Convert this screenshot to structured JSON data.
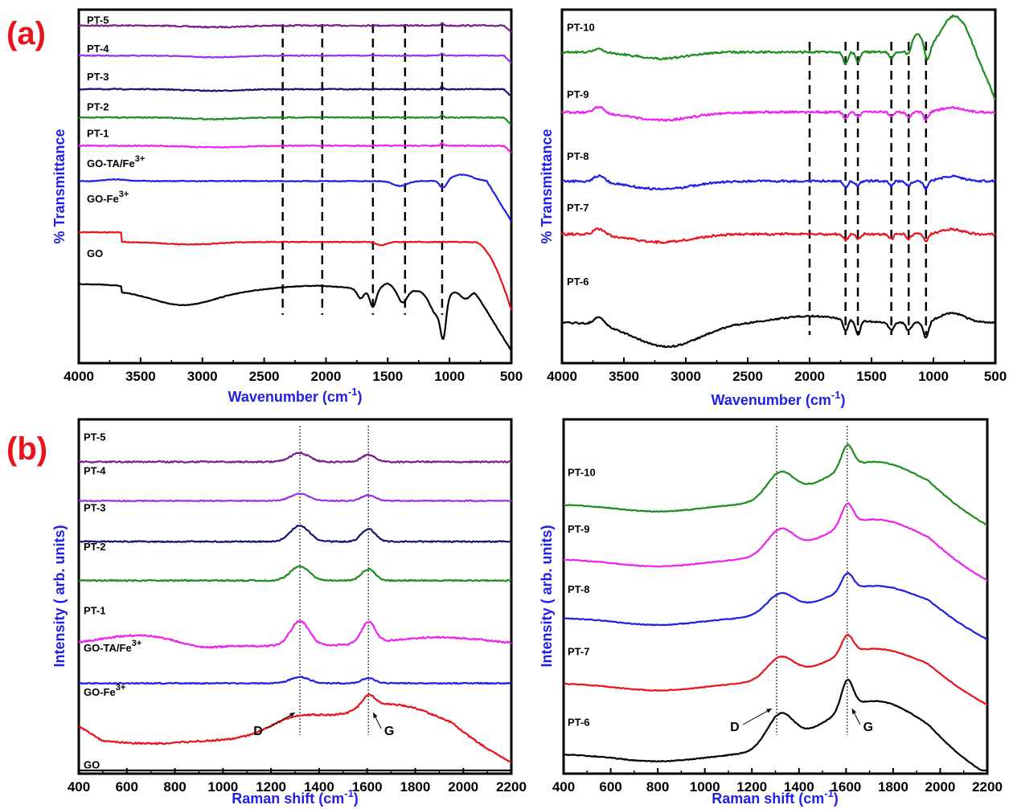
{
  "panel_labels": [
    "(a)",
    "(b)"
  ],
  "colors": {
    "black": "#000000",
    "red": "#e8141c",
    "blue": "#1f1fe6",
    "magenta": "#ee22ee",
    "green": "#1e8c1e",
    "navy": "#151570",
    "violet": "#9a30e8",
    "purple": "#7a1e8c"
  },
  "chart_data": [
    {
      "type": "line",
      "title": "",
      "xlabel": "Wavenumber (cm",
      "xlabel_sup": "-1",
      "xlabel_tail": ")",
      "ylabel": "% Transmittance",
      "xlim": [
        4000,
        500
      ],
      "xticks": [
        "4000",
        "3500",
        "3000",
        "2500",
        "2000",
        "1500",
        "1000",
        "500"
      ],
      "xtick_values": [
        4000,
        3500,
        3000,
        2500,
        2000,
        1500,
        1000,
        500
      ],
      "reference_lines": [
        2350,
        2030,
        1620,
        1360,
        1060
      ],
      "series": [
        {
          "name": "PT-5",
          "sup": "",
          "color": "#7a1e8c",
          "y": 0.045,
          "ly": 0.04,
          "type": "flat",
          "noise": 0.8
        },
        {
          "name": "PT-4",
          "sup": "",
          "color": "#9a30e8",
          "y": 0.13,
          "ly": 0.12,
          "type": "flat",
          "noise": 0.5
        },
        {
          "name": "PT-3",
          "sup": "",
          "color": "#151570",
          "y": 0.225,
          "ly": 0.2,
          "type": "flat",
          "noise": 0.6
        },
        {
          "name": "PT-2",
          "sup": "",
          "color": "#1e8c1e",
          "y": 0.305,
          "ly": 0.285,
          "type": "flat",
          "noise": 0.6
        },
        {
          "name": "PT-1",
          "sup": "",
          "color": "#ee22ee",
          "y": 0.385,
          "ly": 0.36,
          "type": "flat",
          "noise": 0.6
        },
        {
          "name": "GO-TA/Fe",
          "sup": "3+",
          "color": "#1f1fe6",
          "y": 0.485,
          "ly": 0.445,
          "type": "drop",
          "noise": 0.5
        },
        {
          "name": "GO-Fe",
          "sup": "3+",
          "color": "#e8141c",
          "y": 0.63,
          "ly": 0.545,
          "type": "redgo",
          "noise": 0.5
        },
        {
          "name": "GO",
          "sup": "",
          "color": "#000000",
          "y": 0.795,
          "ly": 0.7,
          "type": "go",
          "noise": 0.4
        }
      ]
    },
    {
      "type": "line",
      "title": "",
      "xlabel": "Wavenumber (cm",
      "xlabel_sup": "-1",
      "xlabel_tail": ")",
      "ylabel": "% Transmittance",
      "xlim": [
        4000,
        500
      ],
      "xticks": [
        "4000",
        "3500",
        "3000",
        "2500",
        "2000",
        "1500",
        "1000",
        "500"
      ],
      "xtick_values": [
        4000,
        3500,
        3000,
        2500,
        2000,
        1500,
        1000,
        500
      ],
      "reference_lines": [
        2000,
        1710,
        1610,
        1340,
        1200,
        1060
      ],
      "series": [
        {
          "name": "PT-10",
          "sup": "",
          "color": "#1e8c1e",
          "y": 0.12,
          "ly": 0.06,
          "type": "pt10",
          "noise": 1.2
        },
        {
          "name": "PT-9",
          "sup": "",
          "color": "#ee22ee",
          "y": 0.29,
          "ly": 0.25,
          "type": "noisy",
          "noise": 1.3
        },
        {
          "name": "PT-8",
          "sup": "",
          "color": "#1f1fe6",
          "y": 0.485,
          "ly": 0.425,
          "type": "noisy",
          "noise": 1.3
        },
        {
          "name": "PT-7",
          "sup": "",
          "color": "#e8141c",
          "y": 0.635,
          "ly": 0.57,
          "type": "noisy",
          "noise": 1.4
        },
        {
          "name": "PT-6",
          "sup": "",
          "color": "#000000",
          "y": 0.885,
          "ly": 0.78,
          "type": "pt6",
          "noise": 1.0
        }
      ]
    },
    {
      "type": "line",
      "title": "",
      "xlabel": "Raman shift (cm",
      "xlabel_sup": "-1",
      "xlabel_tail": ")",
      "ylabel": "Intensity ( arb. units)",
      "xlim": [
        400,
        2200
      ],
      "xticks": [
        "400",
        "600",
        "800",
        "1000",
        "1200",
        "1400",
        "1600",
        "1800",
        "2000",
        "2200"
      ],
      "xtick_values": [
        400,
        600,
        800,
        1000,
        1200,
        1400,
        1600,
        1800,
        2000,
        2200
      ],
      "reference_lines": [
        1320,
        1605
      ],
      "annotations": [
        {
          "text": "D",
          "x": 1320
        },
        {
          "text": "G",
          "x": 1605
        }
      ],
      "series": [
        {
          "name": "PT-5",
          "sup": "",
          "color": "#7a1e8c",
          "y": 0.12,
          "ly": 0.06,
          "type": "rflat",
          "amp": 0.025,
          "noise": 0.9
        },
        {
          "name": "PT-4",
          "sup": "",
          "color": "#9a30e8",
          "y": 0.23,
          "ly": 0.155,
          "type": "rflat",
          "amp": 0.02,
          "noise": 0.6
        },
        {
          "name": "PT-3",
          "sup": "",
          "color": "#151570",
          "y": 0.345,
          "ly": 0.26,
          "type": "rflat",
          "amp": 0.045,
          "noise": 0.8
        },
        {
          "name": "PT-2",
          "sup": "",
          "color": "#1e8c1e",
          "y": 0.455,
          "ly": 0.37,
          "type": "rflat",
          "amp": 0.04,
          "noise": 0.8
        },
        {
          "name": "PT-1",
          "sup": "",
          "color": "#ee22ee",
          "y": 0.64,
          "ly": 0.55,
          "type": "rpt1",
          "amp": 0.07,
          "noise": 1.0
        },
        {
          "name": "GO-TA/Fe",
          "sup": "3+",
          "color": "#1f1fe6",
          "y": 0.745,
          "ly": 0.655,
          "type": "rflat",
          "amp": 0.018,
          "noise": 0.7
        },
        {
          "name": "GO-Fe",
          "sup": "3+",
          "color": "#e8141c",
          "y": 0.905,
          "ly": 0.78,
          "type": "rgofe",
          "amp": 0.07,
          "noise": 1.0
        },
        {
          "name": "GO",
          "sup": "",
          "color": "#000000",
          "y": 1.035,
          "ly": 0.985,
          "type": "rflat",
          "amp": 0.015,
          "noise": 0.6
        }
      ]
    },
    {
      "type": "line",
      "title": "",
      "xlabel": "Raman shift (cm",
      "xlabel_sup": "-1",
      "xlabel_tail": ")",
      "ylabel": "Intensity ( arb. units)",
      "xlim": [
        400,
        2200
      ],
      "xticks": [
        "400",
        "600",
        "800",
        "1000",
        "1200",
        "1400",
        "1600",
        "1800",
        "2000",
        "2200"
      ],
      "xtick_values": [
        400,
        600,
        800,
        1000,
        1200,
        1400,
        1600,
        1800,
        2000,
        2200
      ],
      "reference_lines": [
        1305,
        1605
      ],
      "annotations": [
        {
          "text": "D",
          "x": 1305
        },
        {
          "text": "G",
          "x": 1605
        }
      ],
      "series": [
        {
          "name": "PT-10",
          "sup": "",
          "color": "#1e8c1e",
          "y": 0.24,
          "ly": 0.16,
          "type": "broad",
          "amp": 0.16,
          "noise": 0.5
        },
        {
          "name": "PT-9",
          "sup": "",
          "color": "#ee22ee",
          "y": 0.395,
          "ly": 0.32,
          "type": "broad",
          "amp": 0.15,
          "noise": 0.5
        },
        {
          "name": "PT-8",
          "sup": "",
          "color": "#1f1fe6",
          "y": 0.56,
          "ly": 0.49,
          "type": "broad",
          "amp": 0.12,
          "noise": 0.5
        },
        {
          "name": "PT-7",
          "sup": "",
          "color": "#e8141c",
          "y": 0.745,
          "ly": 0.665,
          "type": "broad",
          "amp": 0.13,
          "noise": 0.5
        },
        {
          "name": "PT-6",
          "sup": "",
          "color": "#000000",
          "y": 0.945,
          "ly": 0.865,
          "type": "broad",
          "amp": 0.2,
          "noise": 0.5
        }
      ]
    }
  ]
}
